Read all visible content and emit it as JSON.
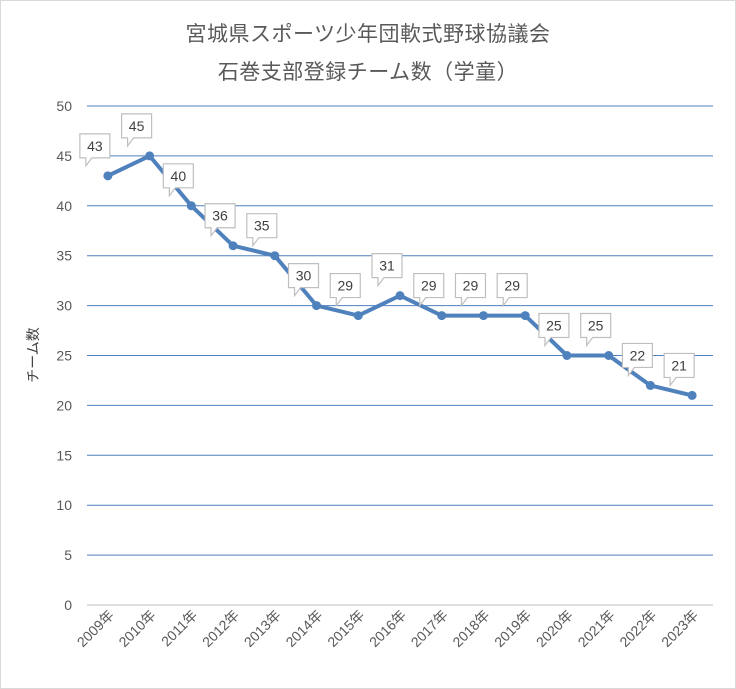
{
  "chart_data": {
    "type": "line",
    "title": "宮城県スポーツ少年団軟式野球協議会",
    "subtitle": "石巻支部登録チーム数（学童）",
    "ylabel": "チーム数",
    "xlabel": "",
    "ylim": [
      0,
      50
    ],
    "ytick_step": 5,
    "yticks": [
      "0",
      "5",
      "10",
      "15",
      "20",
      "25",
      "30",
      "35",
      "40",
      "45",
      "50"
    ],
    "grid": true,
    "legend": "none",
    "categories": [
      "2009年",
      "2010年",
      "2011年",
      "2012年",
      "2013年",
      "2014年",
      "2015年",
      "2016年",
      "2017年",
      "2018年",
      "2019年",
      "2020年",
      "2021年",
      "2022年",
      "2023年"
    ],
    "series": [
      {
        "values": [
          43,
          45,
          40,
          36,
          35,
          30,
          29,
          31,
          29,
          29,
          29,
          25,
          25,
          22,
          21
        ]
      }
    ],
    "colors": {
      "line": "#4f81bd",
      "grid": "#4f81bd",
      "axis": "#bfbfbf",
      "callout_border": "#bfbfbf"
    }
  }
}
